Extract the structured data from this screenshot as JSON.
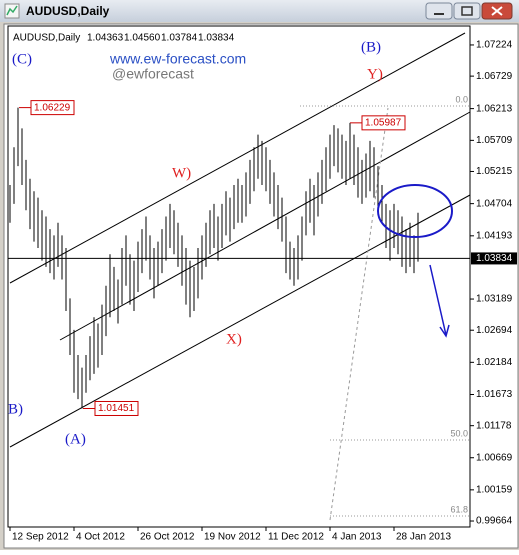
{
  "window_title": "AUDUSD,Daily",
  "chart_data": {
    "type": "ohlc",
    "title": "AUDUSD,Daily",
    "quote": [
      {
        "value": 1.04363,
        "label": "1.04363"
      },
      {
        "value": 1.0456,
        "label": "1.04560"
      },
      {
        "value": 1.03784,
        "label": "1.03784"
      },
      {
        "value": 1.03834,
        "label": "1.03834"
      }
    ],
    "watermark": [
      "www.ew-forecast.com",
      "@ewforecast"
    ],
    "color": "#000000",
    "categories": [
      "12 Sep 2012",
      null,
      null,
      null,
      null,
      null,
      null,
      null,
      null,
      null,
      null,
      null,
      null,
      null,
      null,
      null,
      "4 Oct 2012",
      null,
      null,
      null,
      null,
      null,
      null,
      null,
      null,
      null,
      null,
      null,
      null,
      null,
      null,
      null,
      "26 Oct 2012",
      null,
      null,
      null,
      null,
      null,
      null,
      null,
      null,
      null,
      null,
      null,
      null,
      null,
      null,
      null,
      "19 Nov 2012",
      null,
      null,
      null,
      null,
      null,
      null,
      null,
      null,
      null,
      null,
      null,
      null,
      null,
      null,
      null,
      "11 Dec 2012",
      null,
      null,
      null,
      null,
      null,
      null,
      null,
      null,
      null,
      null,
      null,
      null,
      null,
      null,
      null,
      "4 Jan 2013",
      null,
      null,
      null,
      null,
      null,
      null,
      null,
      null,
      null,
      null,
      null,
      null,
      null,
      null,
      null,
      "28 Jan 2013",
      null,
      null,
      null,
      null,
      null,
      null
    ],
    "highs": [
      1.05,
      1.056,
      1.06229,
      1.059,
      1.054,
      1.051,
      1.049,
      1.048,
      1.046,
      1.045,
      1.043,
      1.042,
      1.044,
      1.042,
      1.04,
      1.032,
      1.027,
      1.023,
      1.021,
      1.023,
      1.026,
      1.029,
      1.028,
      1.031,
      1.034,
      1.039,
      1.037,
      1.035,
      1.04,
      1.042,
      1.039,
      1.038,
      1.041,
      1.043,
      1.045,
      1.042,
      1.04,
      1.041,
      1.043,
      1.045,
      1.047,
      1.046,
      1.044,
      1.042,
      1.04,
      1.038,
      1.037,
      1.04,
      1.042,
      1.044,
      1.046,
      1.047,
      1.045,
      1.047,
      1.049,
      1.048,
      1.05,
      1.051,
      1.05,
      1.052,
      1.054,
      1.056,
      1.058,
      1.057,
      1.056,
      1.054,
      1.052,
      1.05,
      1.048,
      1.045,
      1.041,
      1.04,
      1.042,
      1.045,
      1.049,
      1.051,
      1.05,
      1.052,
      1.054,
      1.056,
      1.058,
      1.0595,
      1.059,
      1.058,
      1.057,
      1.05987,
      1.058,
      1.056,
      1.054,
      1.055,
      1.057,
      1.056,
      1.053,
      1.05,
      1.047,
      1.046,
      1.047,
      1.046,
      1.045,
      1.043,
      1.044,
      1.042,
      1.0456
    ],
    "lows": [
      1.044,
      1.047,
      1.053,
      1.05,
      1.046,
      1.043,
      1.041,
      1.04,
      1.038,
      1.037,
      1.036,
      1.035,
      1.037,
      1.035,
      1.03,
      1.023,
      1.017,
      1.016,
      1.01451,
      1.017,
      1.019,
      1.02,
      1.021,
      1.023,
      1.026,
      1.029,
      1.03,
      1.028,
      1.031,
      1.034,
      1.031,
      1.03,
      1.033,
      1.036,
      1.038,
      1.035,
      1.032,
      1.034,
      1.036,
      1.038,
      1.04,
      1.039,
      1.037,
      1.034,
      1.031,
      1.029,
      1.03,
      1.032,
      1.035,
      1.037,
      1.039,
      1.04,
      1.038,
      1.04,
      1.042,
      1.041,
      1.043,
      1.044,
      1.044,
      1.045,
      1.047,
      1.049,
      1.051,
      1.05,
      1.049,
      1.047,
      1.045,
      1.043,
      1.041,
      1.036,
      1.035,
      1.034,
      1.035,
      1.038,
      1.042,
      1.044,
      1.042,
      1.045,
      1.047,
      1.049,
      1.051,
      1.053,
      1.052,
      1.051,
      1.05,
      1.051,
      1.05,
      1.048,
      1.047,
      1.048,
      1.049,
      1.048,
      1.046,
      1.044,
      1.04,
      1.038,
      1.04,
      1.039,
      1.037,
      1.036,
      1.037,
      1.036,
      1.03784
    ],
    "last_price": 1.03834,
    "price_labels": [
      1.06229,
      1.01451,
      1.05987
    ],
    "ylim": [
      0.99569,
      1.07525
    ],
    "yticks": [
      1.07224,
      1.06729,
      1.06213,
      1.05709,
      1.05215,
      1.04704,
      1.04193,
      1.03189,
      1.02694,
      1.02184,
      1.01673,
      1.01178,
      1.00669,
      1.00159,
      0.99664
    ],
    "fib_levels": [
      "0.0",
      "50.0",
      "61.8"
    ],
    "wave_labels": [
      "(C)",
      "(B)",
      "Y)",
      "W)",
      "X)",
      "(A)",
      "B)"
    ]
  }
}
